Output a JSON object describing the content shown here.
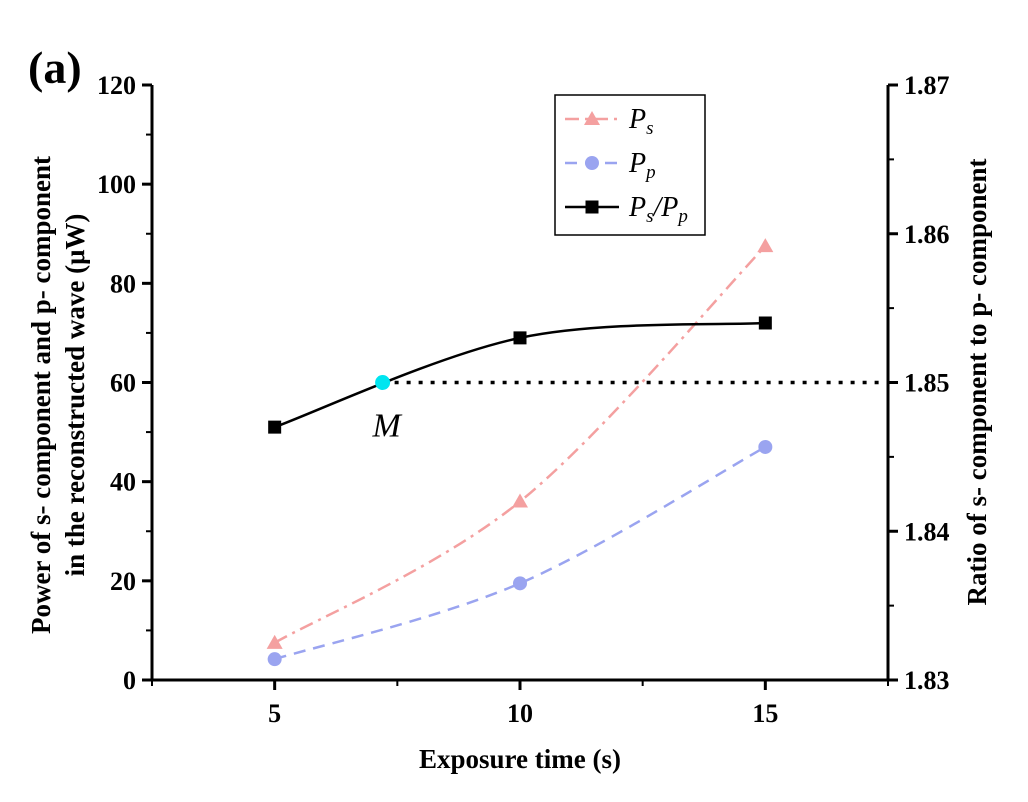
{
  "chart_data": {
    "type": "line",
    "panel_label": "(a)",
    "xlabel": "Exposure time (s)",
    "ylabel_left_line1": "Power of s- component and p- component",
    "ylabel_left_line2": "in the reconstructed wave (μW)",
    "ylabel_right": "Ratio of s- component to p- component",
    "xlim": [
      2.5,
      17.5
    ],
    "ylim_left": [
      0,
      120
    ],
    "ylim_right": [
      1.83,
      1.87
    ],
    "x_ticks": [
      5,
      10,
      15
    ],
    "x_tick_labels": [
      "5",
      "10",
      "15"
    ],
    "y_left_ticks": [
      0,
      20,
      40,
      60,
      80,
      100,
      120
    ],
    "y_left_tick_labels": [
      "0",
      "20",
      "40",
      "60",
      "80",
      "100",
      "120"
    ],
    "y_right_ticks": [
      1.83,
      1.84,
      1.85,
      1.86,
      1.87
    ],
    "y_right_tick_labels": [
      "1.83",
      "1.84",
      "1.85",
      "1.86",
      "1.87"
    ],
    "legend_position": "top-right",
    "series": [
      {
        "name_main": "P",
        "name_sub": "s",
        "axis": "left",
        "x": [
          5,
          10,
          15
        ],
        "values": [
          7.5,
          36,
          87.5
        ],
        "color": "#f4a0a0",
        "marker": "triangle",
        "line_style": "dash-dot"
      },
      {
        "name_main": "P",
        "name_sub": "p",
        "axis": "left",
        "x": [
          5,
          10,
          15
        ],
        "values": [
          4.2,
          19.5,
          47
        ],
        "color": "#9aa4f0",
        "marker": "circle",
        "line_style": "dashed"
      },
      {
        "name_main": "P",
        "name_sub": "s",
        "name_sep": "/P",
        "name_sub2": "p",
        "axis": "right",
        "x": [
          5,
          10,
          15
        ],
        "values": [
          1.847,
          1.853,
          1.854
        ],
        "color": "#000000",
        "marker": "square",
        "line_style": "solid"
      }
    ],
    "annotation": {
      "label": "M",
      "x": 7.2,
      "y_right": 1.85,
      "color": "#00e5f0",
      "reference_line_style": "dotted",
      "reference_line_to_x": 17.5
    }
  }
}
